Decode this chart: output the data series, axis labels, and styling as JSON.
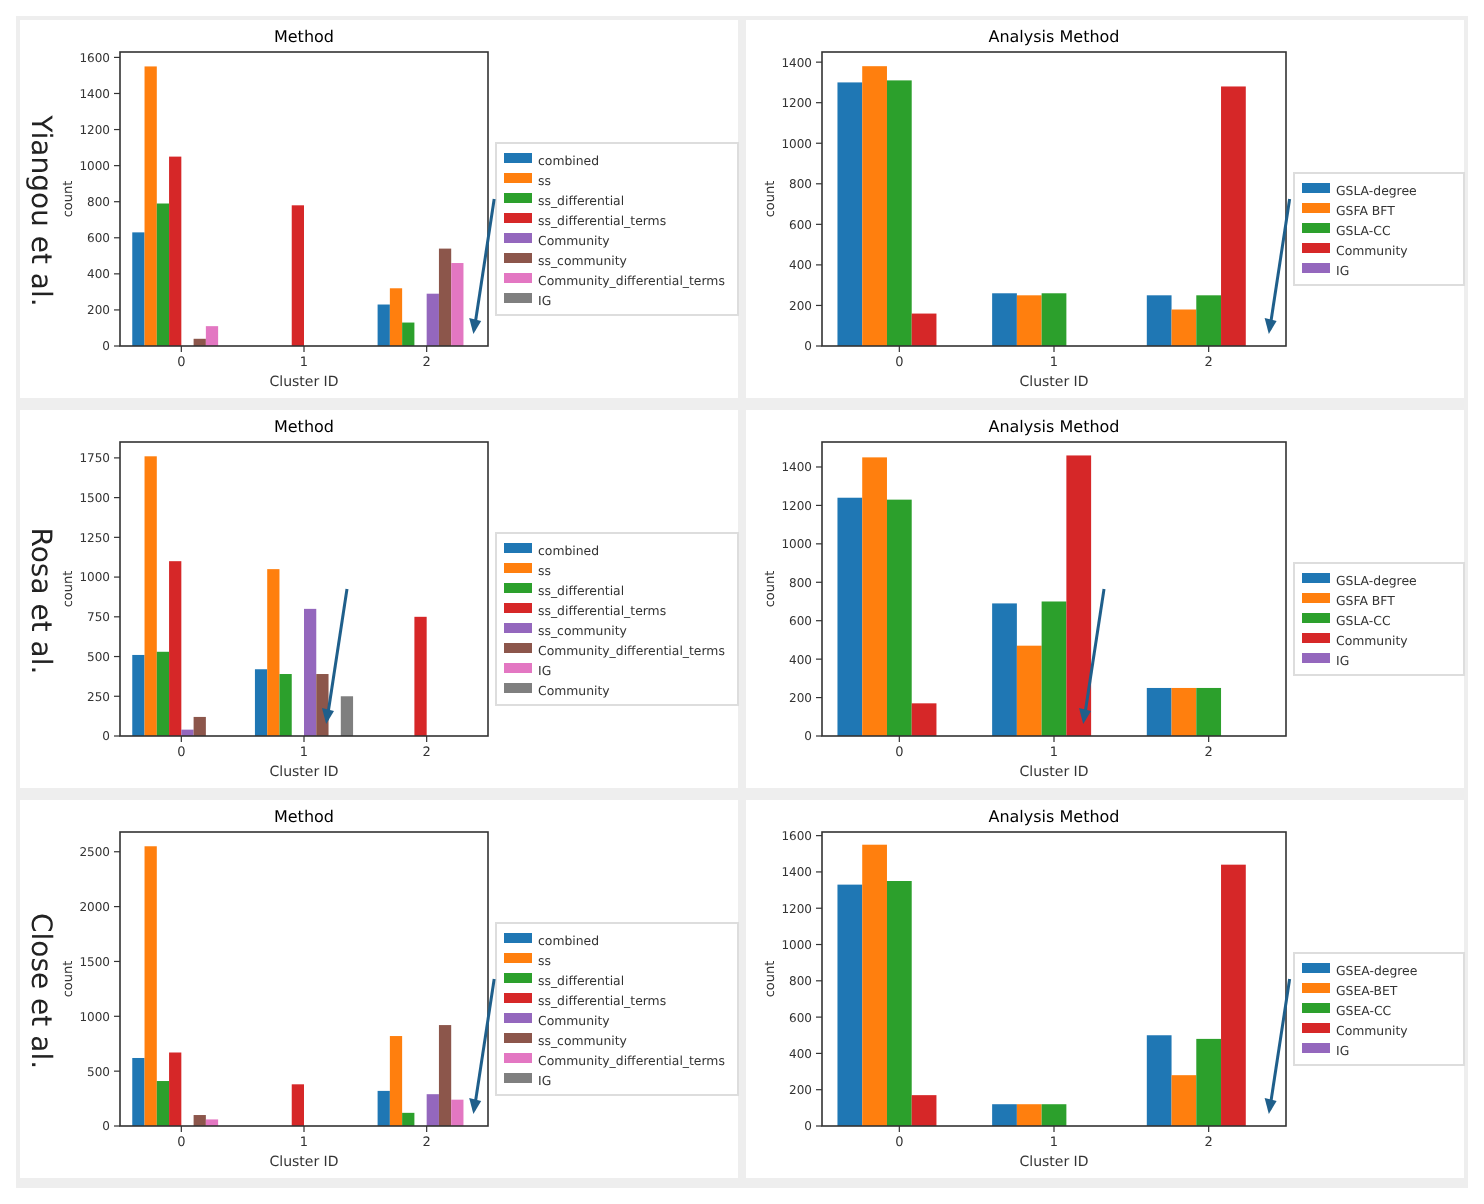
{
  "chart_data": [
    {
      "type": "bar",
      "title": "Method",
      "xlabel": "Cluster ID",
      "ylabel": "count",
      "annotations": [
        "Yiangou et al."
      ],
      "categories": [
        "0",
        "1",
        "2"
      ],
      "ylim": [
        0,
        1630
      ],
      "yticks": [
        0,
        200,
        400,
        600,
        800,
        1000,
        1200,
        1400,
        1600
      ],
      "legend": "right",
      "series": [
        {
          "name": "combined",
          "color": "#1f77b4",
          "values": [
            630,
            null,
            230
          ]
        },
        {
          "name": "ss",
          "color": "#ff7f0e",
          "values": [
            1550,
            null,
            320
          ]
        },
        {
          "name": "ss_differential",
          "color": "#2ca02c",
          "values": [
            790,
            null,
            130
          ]
        },
        {
          "name": "ss_differential_terms",
          "color": "#d62728",
          "values": [
            1050,
            780,
            null
          ]
        },
        {
          "name": "Community",
          "color": "#9467bd",
          "values": [
            null,
            null,
            290
          ]
        },
        {
          "name": "ss_community",
          "color": "#8c564b",
          "values": [
            40,
            null,
            540
          ]
        },
        {
          "name": "Community_differential_terms",
          "color": "#e377c2",
          "values": [
            110,
            null,
            460
          ]
        },
        {
          "name": "IG",
          "color": "#7f7f7f",
          "values": [
            null,
            null,
            null
          ]
        }
      ]
    },
    {
      "type": "bar",
      "title": "Analysis Method",
      "xlabel": "Cluster ID",
      "ylabel": "count",
      "categories": [
        "0",
        "1",
        "2"
      ],
      "ylim": [
        0,
        1450
      ],
      "yticks": [
        0,
        200,
        400,
        600,
        800,
        1000,
        1200,
        1400
      ],
      "legend": "right",
      "series": [
        {
          "name": "GSLA-degree",
          "color": "#1f77b4",
          "values": [
            1300,
            260,
            250
          ]
        },
        {
          "name": "GSFA BFT",
          "color": "#ff7f0e",
          "values": [
            1380,
            250,
            180
          ]
        },
        {
          "name": "GSLA-CC",
          "color": "#2ca02c",
          "values": [
            1310,
            260,
            250
          ]
        },
        {
          "name": "Community",
          "color": "#d62728",
          "values": [
            160,
            null,
            1280
          ]
        },
        {
          "name": "IG",
          "color": "#9467bd",
          "values": [
            null,
            null,
            null
          ]
        }
      ]
    },
    {
      "type": "bar",
      "title": "Method",
      "xlabel": "Cluster ID",
      "ylabel": "count",
      "annotations": [
        "Rosa et al."
      ],
      "categories": [
        "0",
        "1",
        "2"
      ],
      "ylim": [
        0,
        1850
      ],
      "yticks": [
        0,
        250,
        500,
        750,
        1000,
        1250,
        1500,
        1750
      ],
      "legend": "right",
      "series": [
        {
          "name": "combined",
          "color": "#1f77b4",
          "values": [
            510,
            420,
            null
          ]
        },
        {
          "name": "ss",
          "color": "#ff7f0e",
          "values": [
            1760,
            1050,
            null
          ]
        },
        {
          "name": "ss_differential",
          "color": "#2ca02c",
          "values": [
            530,
            390,
            null
          ]
        },
        {
          "name": "ss_differential_terms",
          "color": "#d62728",
          "values": [
            1100,
            null,
            750
          ]
        },
        {
          "name": "ss_community",
          "color": "#9467bd",
          "values": [
            40,
            800,
            null
          ]
        },
        {
          "name": "Community_differential_terms",
          "color": "#8c564b",
          "values": [
            120,
            390,
            null
          ]
        },
        {
          "name": "IG",
          "color": "#e377c2",
          "values": [
            null,
            null,
            null
          ]
        },
        {
          "name": "Community",
          "color": "#7f7f7f",
          "values": [
            null,
            250,
            null
          ]
        }
      ]
    },
    {
      "type": "bar",
      "title": "Analysis Method",
      "xlabel": "Cluster ID",
      "ylabel": "count",
      "categories": [
        "0",
        "1",
        "2"
      ],
      "ylim": [
        0,
        1530
      ],
      "yticks": [
        0,
        200,
        400,
        600,
        800,
        1000,
        1200,
        1400
      ],
      "legend": "right",
      "series": [
        {
          "name": "GSLA-degree",
          "color": "#1f77b4",
          "values": [
            1240,
            690,
            250
          ]
        },
        {
          "name": "GSFA BFT",
          "color": "#ff7f0e",
          "values": [
            1450,
            470,
            250
          ]
        },
        {
          "name": "GSLA-CC",
          "color": "#2ca02c",
          "values": [
            1230,
            700,
            250
          ]
        },
        {
          "name": "Community",
          "color": "#d62728",
          "values": [
            170,
            1460,
            null
          ]
        },
        {
          "name": "IG",
          "color": "#9467bd",
          "values": [
            null,
            null,
            null
          ]
        }
      ]
    },
    {
      "type": "bar",
      "title": "Method",
      "xlabel": "Cluster ID",
      "ylabel": "count",
      "annotations": [
        "Close et al."
      ],
      "categories": [
        "0",
        "1",
        "2"
      ],
      "ylim": [
        0,
        2680
      ],
      "yticks": [
        0,
        500,
        1000,
        1500,
        2000,
        2500
      ],
      "legend": "right",
      "series": [
        {
          "name": "combined",
          "color": "#1f77b4",
          "values": [
            620,
            null,
            320
          ]
        },
        {
          "name": "ss",
          "color": "#ff7f0e",
          "values": [
            2550,
            null,
            820
          ]
        },
        {
          "name": "ss_differential",
          "color": "#2ca02c",
          "values": [
            410,
            null,
            120
          ]
        },
        {
          "name": "ss_differential_terms",
          "color": "#d62728",
          "values": [
            670,
            380,
            null
          ]
        },
        {
          "name": "Community",
          "color": "#9467bd",
          "values": [
            null,
            null,
            290
          ]
        },
        {
          "name": "ss_community",
          "color": "#8c564b",
          "values": [
            100,
            null,
            920
          ]
        },
        {
          "name": "Community_differential_terms",
          "color": "#e377c2",
          "values": [
            60,
            null,
            240
          ]
        },
        {
          "name": "IG",
          "color": "#7f7f7f",
          "values": [
            null,
            null,
            null
          ]
        }
      ]
    },
    {
      "type": "bar",
      "title": "Analysis Method",
      "xlabel": "Cluster ID",
      "ylabel": "count",
      "categories": [
        "0",
        "1",
        "2"
      ],
      "ylim": [
        0,
        1620
      ],
      "yticks": [
        0,
        200,
        400,
        600,
        800,
        1000,
        1200,
        1400,
        1600
      ],
      "legend": "right",
      "series": [
        {
          "name": "GSEA-degree",
          "color": "#1f77b4",
          "values": [
            1330,
            120,
            500
          ]
        },
        {
          "name": "GSEA-BET",
          "color": "#ff7f0e",
          "values": [
            1550,
            120,
            280
          ]
        },
        {
          "name": "GSEA-CC",
          "color": "#2ca02c",
          "values": [
            1350,
            120,
            480
          ]
        },
        {
          "name": "Community",
          "color": "#d62728",
          "values": [
            170,
            null,
            1440
          ]
        },
        {
          "name": "IG",
          "color": "#9467bd",
          "values": [
            null,
            null,
            null
          ]
        }
      ]
    }
  ]
}
